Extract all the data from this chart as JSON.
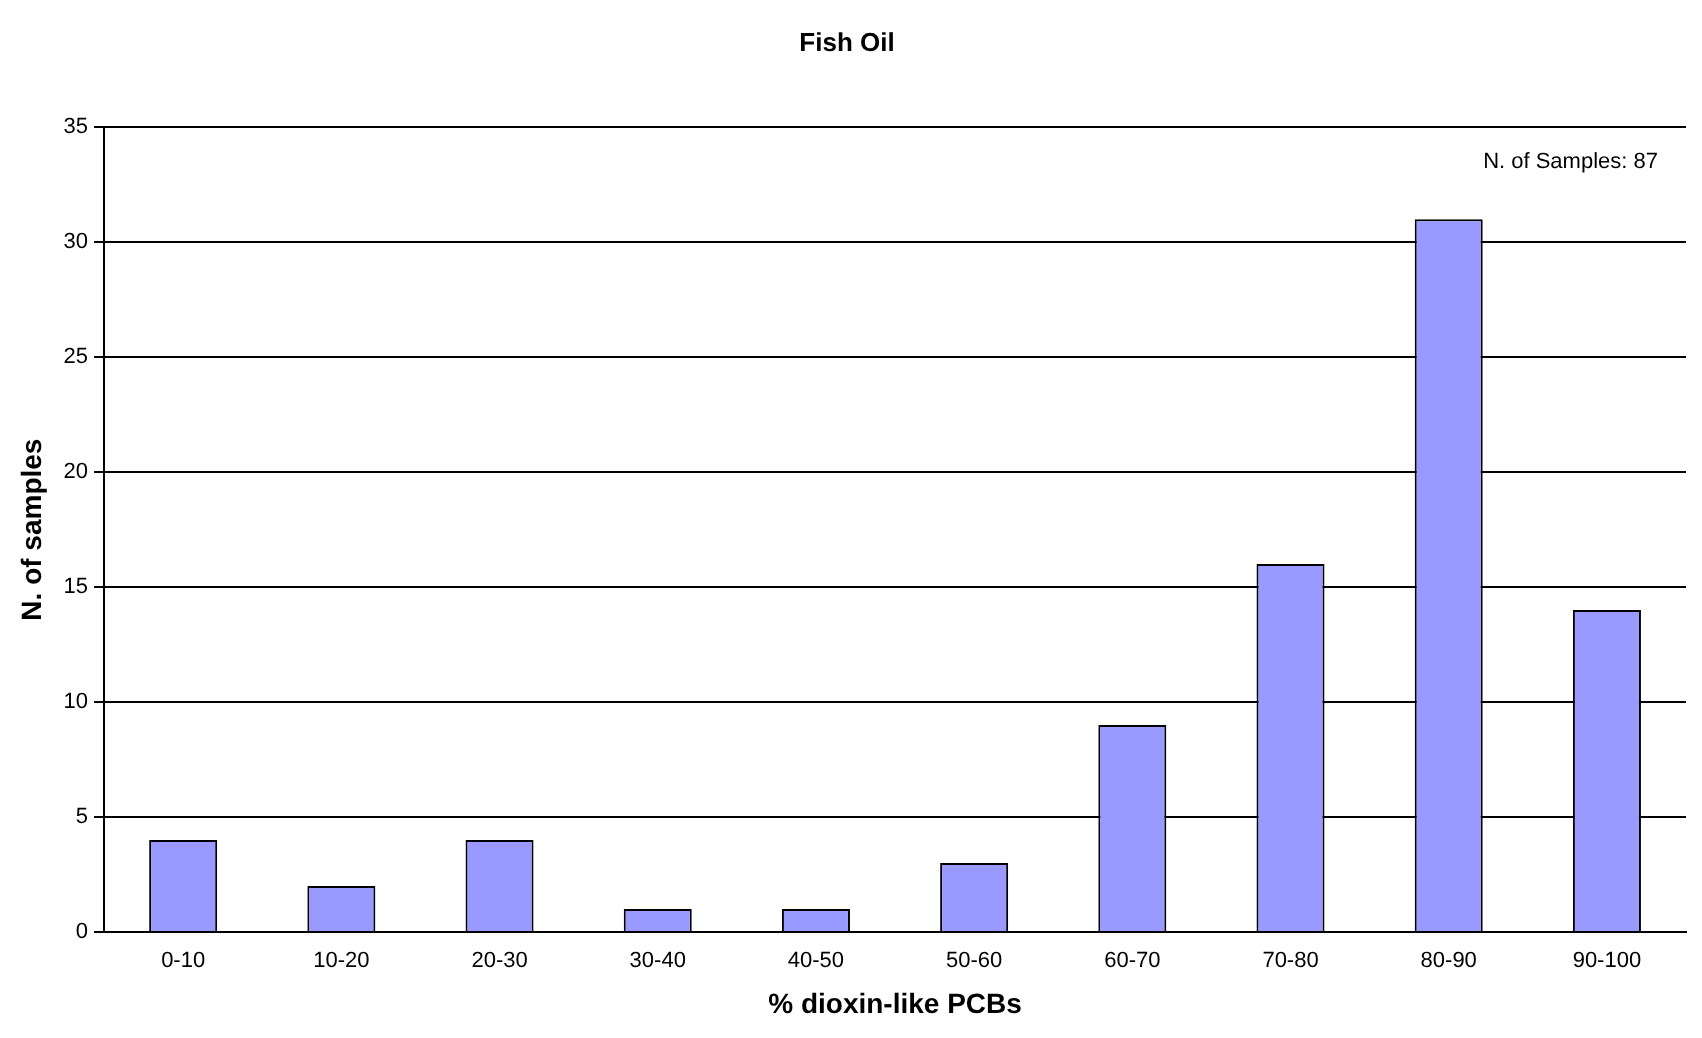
{
  "chart_data": {
    "type": "bar",
    "title": "Fish Oil",
    "xlabel": "% dioxin-like PCBs",
    "ylabel": "N. of samples",
    "categories": [
      "0-10",
      "10-20",
      "20-30",
      "30-40",
      "40-50",
      "50-60",
      "60-70",
      "70-80",
      "80-90",
      "90-100"
    ],
    "values": [
      4,
      2,
      4,
      1,
      1,
      3,
      9,
      16,
      31,
      14
    ],
    "color": "#9999ff",
    "ylim": [
      0,
      35
    ],
    "yticks": [
      0,
      5,
      10,
      15,
      20,
      25,
      30,
      35
    ],
    "grid": "y",
    "legend": false,
    "annotations": [
      "N. of Samples: 87"
    ]
  }
}
